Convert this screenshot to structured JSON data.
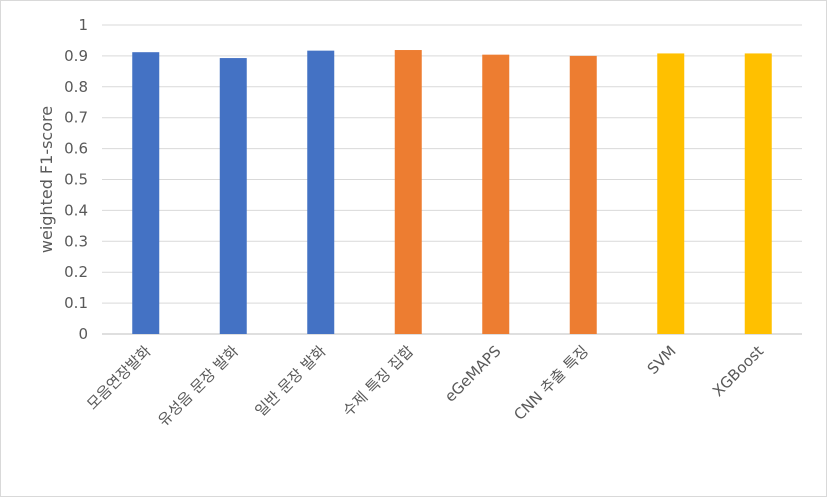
{
  "chart_data": {
    "type": "bar",
    "categories": [
      "모음연장발화",
      "유성음 문장 발화",
      "일반 문장 발화",
      "수제 특징 집합",
      "eGeMAPS",
      "CNN 추출 특징",
      "SVM",
      "XGBoost"
    ],
    "values": [
      0.912,
      0.893,
      0.917,
      0.919,
      0.904,
      0.9,
      0.908,
      0.908
    ],
    "colors": [
      "#4472C4",
      "#4472C4",
      "#4472C4",
      "#ED7D31",
      "#ED7D31",
      "#ED7D31",
      "#FFC000",
      "#FFC000"
    ],
    "ylabel": "weighted F1-score",
    "ylim": [
      0,
      1
    ],
    "yticks": [
      0,
      0.1,
      0.2,
      0.3,
      0.4,
      0.5,
      0.6,
      0.7,
      0.8,
      0.9,
      1
    ],
    "ytick_labels": [
      "0",
      "0.1",
      "0.2",
      "0.3",
      "0.4",
      "0.5",
      "0.6",
      "0.7",
      "0.8",
      "0.9",
      "1"
    ],
    "grid": true,
    "legend": "none"
  }
}
